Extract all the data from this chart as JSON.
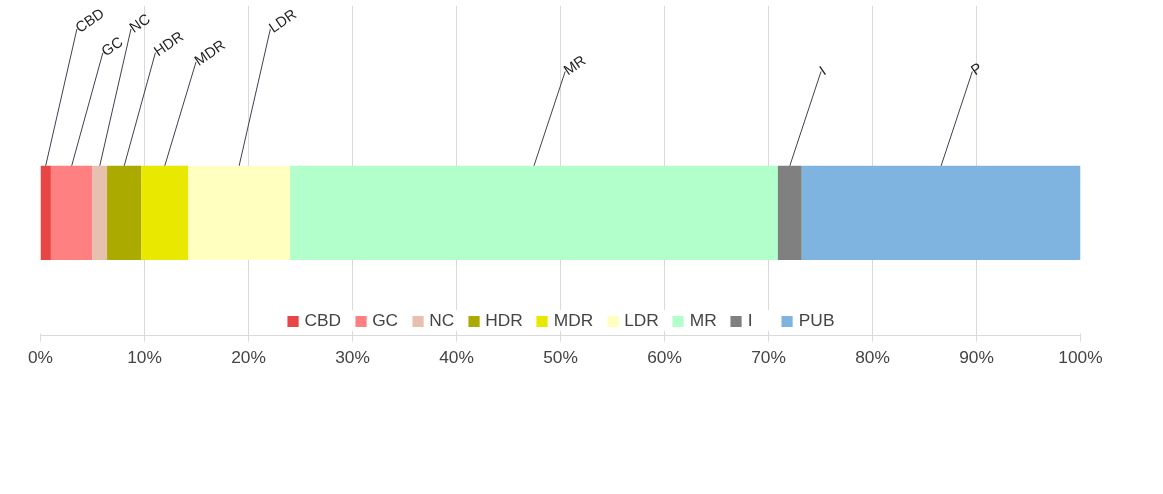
{
  "chart_data": {
    "type": "bar",
    "orientation": "horizontal",
    "stacked": true,
    "categories": [
      null
    ],
    "series": [
      {
        "name": "CBD",
        "color": "#e84545",
        "values": [
          1.0
        ],
        "value_labels": [
          "CBD"
        ]
      },
      {
        "name": "GC",
        "color": "#ff8080",
        "values": [
          4.0
        ],
        "value_labels": [
          "GC"
        ]
      },
      {
        "name": "NC",
        "color": "#e8c0b0",
        "values": [
          1.4
        ],
        "value_labels": [
          "NC"
        ]
      },
      {
        "name": "HDR",
        "color": "#aaaa00",
        "values": [
          3.3
        ],
        "value_labels": [
          "HDR"
        ]
      },
      {
        "name": "MDR",
        "color": "#e8e800",
        "values": [
          4.5
        ],
        "value_labels": [
          "MDR"
        ]
      },
      {
        "name": "LDR",
        "color": "#ffffc0",
        "values": [
          9.8
        ],
        "value_labels": [
          "LDR"
        ]
      },
      {
        "name": "MR",
        "color": "#b3ffcc",
        "values": [
          46.9
        ],
        "value_labels": [
          "MR"
        ]
      },
      {
        "name": "I",
        "color": "#808080",
        "values": [
          2.3
        ],
        "value_labels": [
          "I"
        ]
      },
      {
        "name": "PUB",
        "color": "#7fb3e0",
        "values": [
          26.8
        ],
        "value_labels": [
          "P"
        ]
      }
    ],
    "xlim": [
      0,
      100
    ],
    "xticks": [
      {
        "value": 0,
        "label": "0%"
      },
      {
        "value": 10,
        "label": "10%"
      },
      {
        "value": 20,
        "label": "20%"
      },
      {
        "value": 30,
        "label": "30%"
      },
      {
        "value": 40,
        "label": "40%"
      },
      {
        "value": 50,
        "label": "50%"
      },
      {
        "value": 60,
        "label": "60%"
      },
      {
        "value": 70,
        "label": "70%"
      },
      {
        "value": 80,
        "label": "80%"
      },
      {
        "value": 90,
        "label": "90%"
      },
      {
        "value": 100,
        "label": "100%"
      }
    ],
    "grid": "x",
    "legend": "bottom"
  }
}
